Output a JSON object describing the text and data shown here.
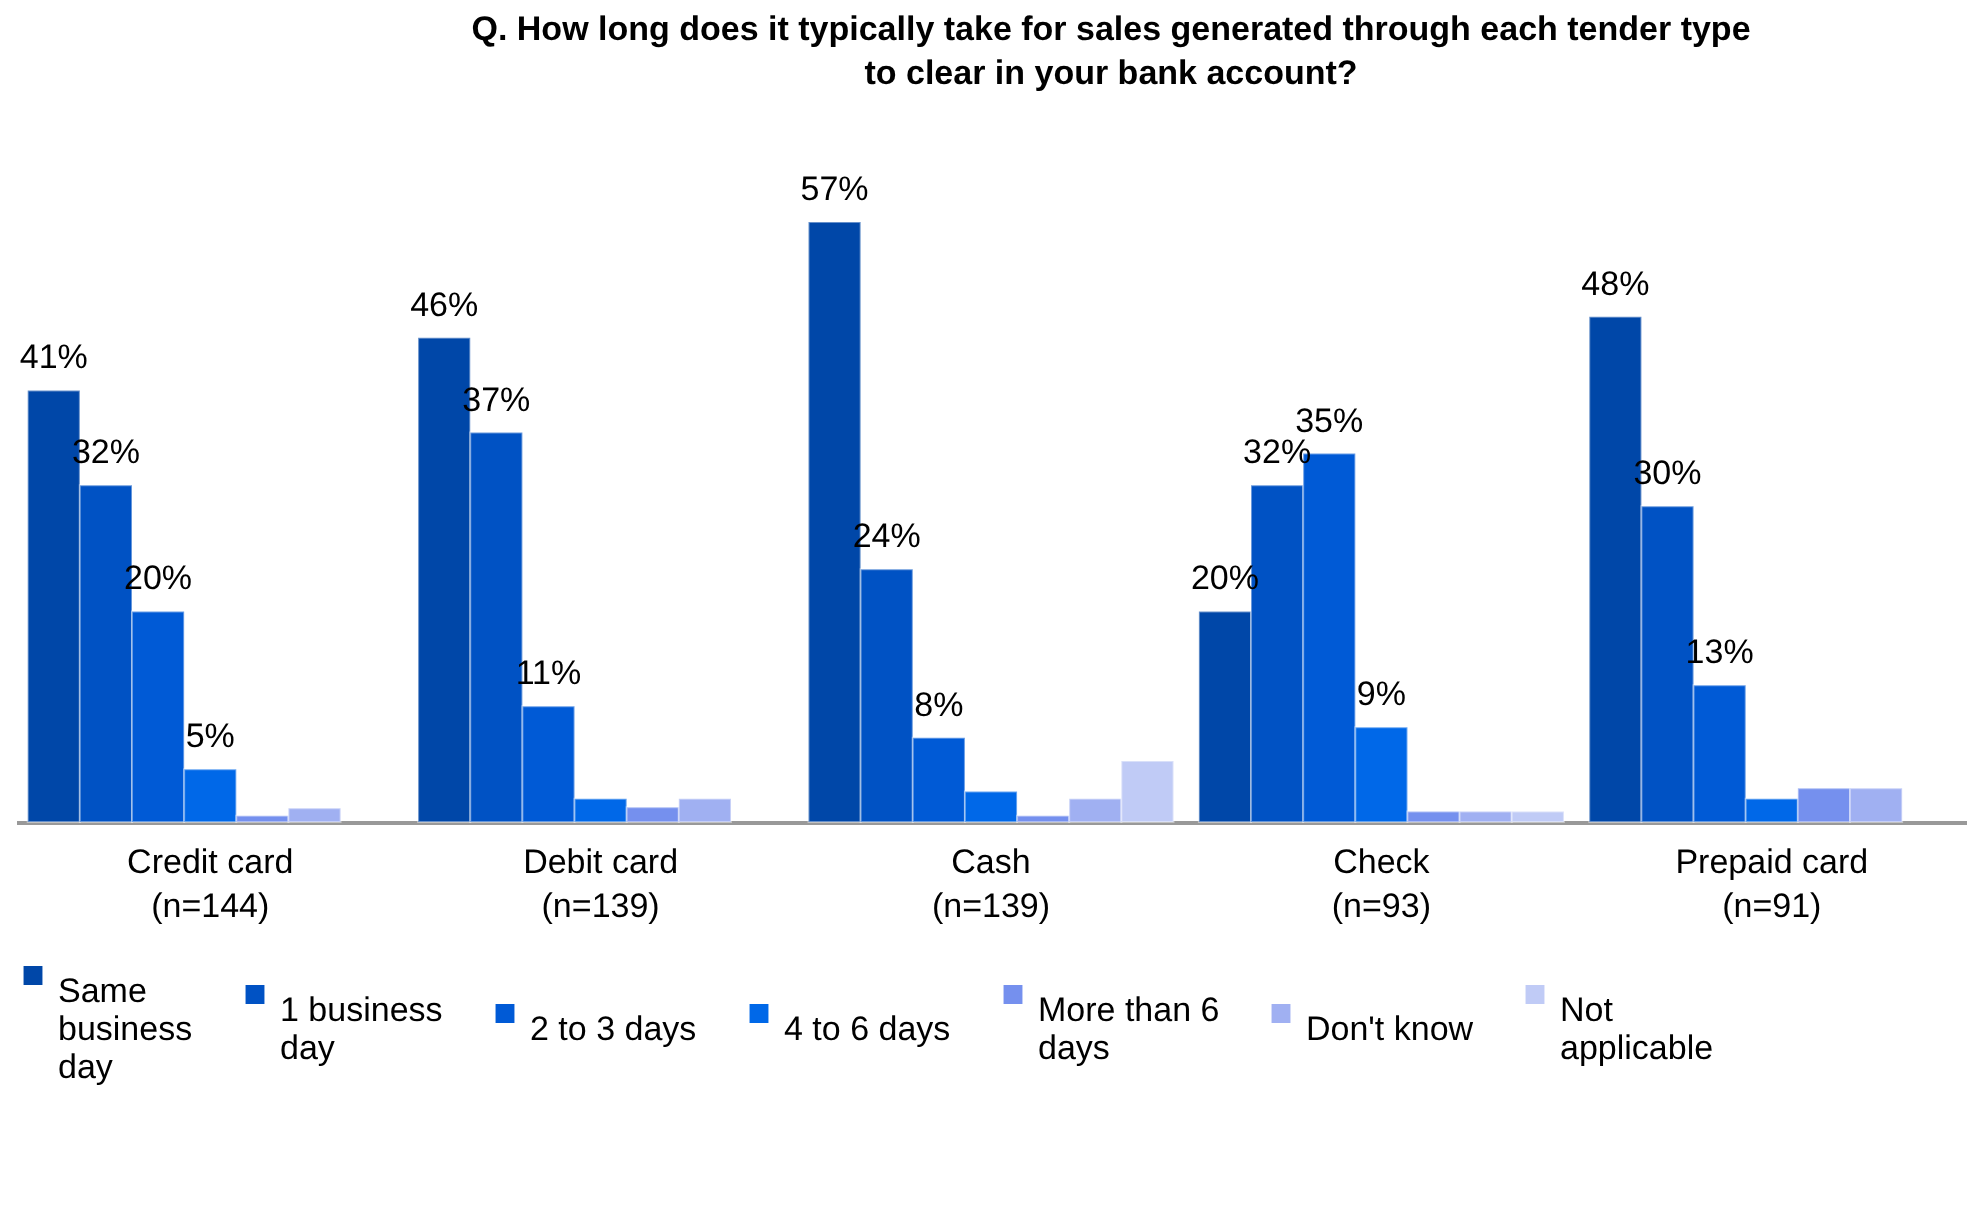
{
  "chart_data": {
    "type": "bar",
    "title": "Q. How long does it typically take for sales generated through each tender type to clear in your bank account?",
    "categories": [
      "Credit card\n(n=144)",
      "Debit card\n(n=139)",
      "Cash\n(n=139)",
      "Check\n(n=93)",
      "Prepaid card\n(n=91)"
    ],
    "series": [
      {
        "name": "Same business day",
        "color": "#0047a8",
        "values": [
          41,
          46,
          57,
          20,
          48
        ],
        "value_labels": [
          "41%",
          "46%",
          "57%",
          "20%",
          "48%"
        ]
      },
      {
        "name": "1 business day",
        "color": "#0052c4",
        "values": [
          32,
          37,
          24,
          32,
          30
        ],
        "value_labels": [
          "32%",
          "37%",
          "24%",
          "32%",
          "30%"
        ]
      },
      {
        "name": "2 to 3 days",
        "color": "#005ad6",
        "values": [
          20,
          11,
          8,
          35,
          13
        ],
        "value_labels": [
          "20%",
          "11%",
          "8%",
          "35%",
          "13%"
        ]
      },
      {
        "name": "4 to 6 days",
        "color": "#0068e8",
        "values": [
          5,
          2.2,
          2.9,
          9,
          2.2
        ],
        "value_labels": [
          "5%",
          null,
          null,
          "9%",
          null
        ]
      },
      {
        "name": "More than 6 days",
        "color": "#7590ee",
        "values": [
          0.6,
          1.4,
          0.6,
          1,
          3.2
        ],
        "value_labels": [
          null,
          null,
          null,
          null,
          null
        ]
      },
      {
        "name": "Don't know",
        "color": "#a0b0f2",
        "values": [
          1.3,
          2.2,
          2.2,
          1,
          3.2
        ],
        "value_labels": [
          null,
          null,
          null,
          null,
          null
        ]
      },
      {
        "name": "Not applicable",
        "color": "#c0cbf6",
        "values": [
          null,
          null,
          5.8,
          1,
          null
        ],
        "value_labels": [
          null,
          null,
          null,
          null,
          null
        ]
      }
    ],
    "legend": "bottom"
  }
}
